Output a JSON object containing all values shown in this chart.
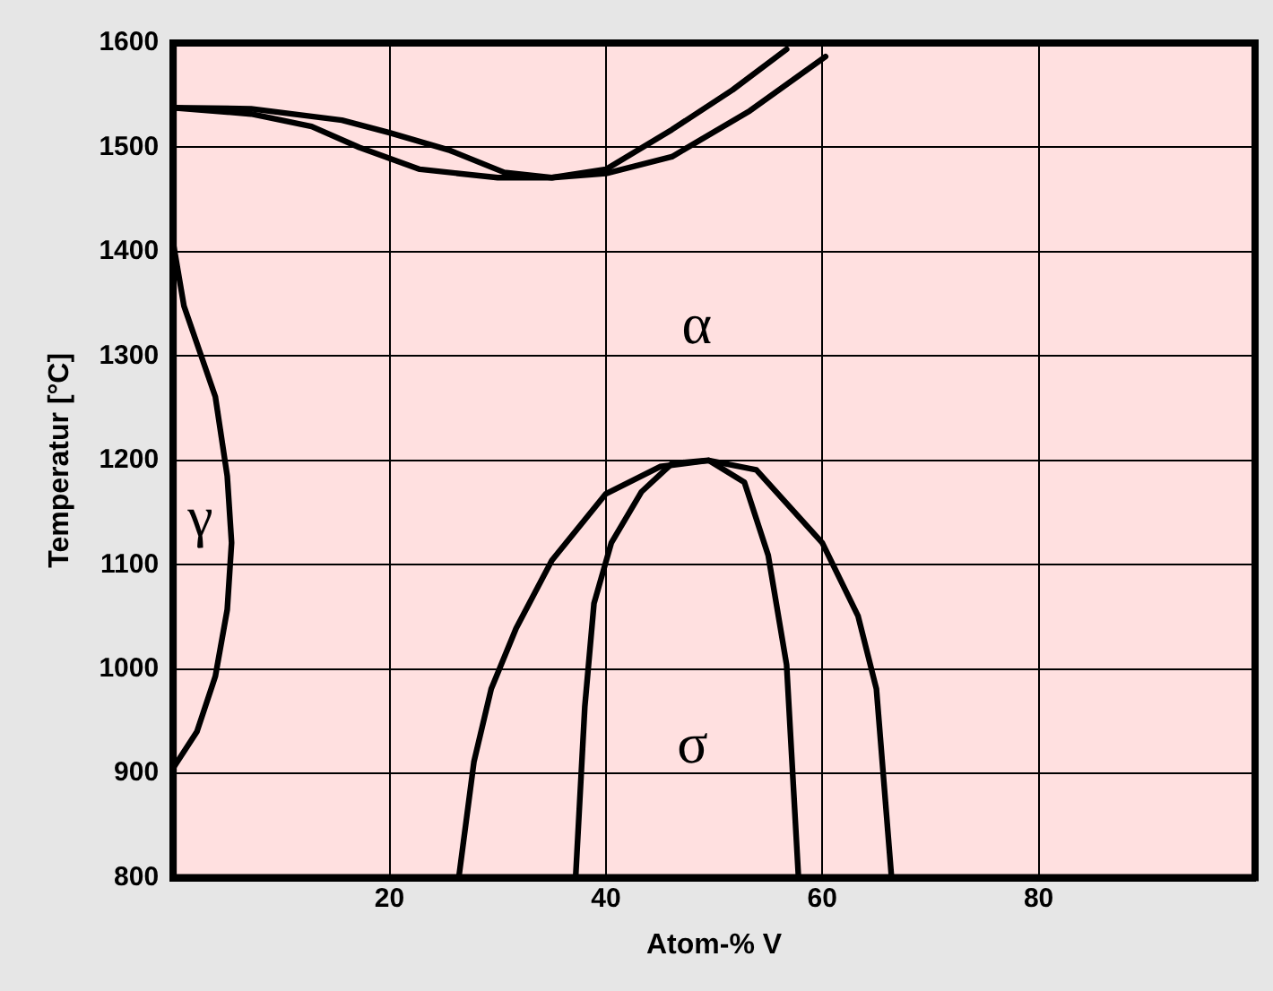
{
  "chart_data": {
    "type": "line",
    "xlabel": "Atom-% V",
    "ylabel": "Temperatur [°C]",
    "xlim": [
      0,
      100
    ],
    "xticks": [
      20,
      40,
      60,
      80
    ],
    "ylim": [
      800,
      1600
    ],
    "yticks": [
      800,
      900,
      1000,
      1100,
      1200,
      1300,
      1400,
      1500,
      1600
    ],
    "grid": true,
    "legend": false,
    "marker": "none",
    "line_style": "solid",
    "series": [
      {
        "color": "#000000",
        "x": [
          0,
          7.2,
          15.6,
          20,
          25.6,
          30.6,
          35,
          40,
          46.1,
          51.7,
          56.7
        ],
        "values": [
          1538,
          1537,
          1526,
          1514,
          1497,
          1476,
          1471,
          1479,
          1517,
          1555,
          1594
        ]
      },
      {
        "color": "#000000",
        "x": [
          0,
          7.2,
          12.8,
          17.2,
          22.8,
          30,
          35,
          40,
          46.1,
          53.3,
          60.3
        ],
        "values": [
          1538,
          1532,
          1520,
          1500,
          1479,
          1471,
          1471,
          1475,
          1491,
          1535,
          1587
        ]
      },
      {
        "color": "#000000",
        "x": [
          0,
          1,
          3.9,
          5,
          5.4,
          5,
          3.9,
          2.2,
          0
        ],
        "values": [
          1409,
          1348,
          1261,
          1185,
          1121,
          1057,
          993,
          940,
          905
        ]
      },
      {
        "color": "#000000",
        "x": [
          26.4,
          27.8,
          29.4,
          31.7,
          35,
          40,
          45,
          49.5,
          53.9,
          60,
          63.3,
          65,
          66.4
        ],
        "values": [
          800,
          911,
          981,
          1039,
          1104,
          1168,
          1194,
          1200,
          1191,
          1121,
          1051,
          981,
          800
        ]
      },
      {
        "color": "#000000",
        "x": [
          37.2,
          38.05,
          38.9,
          40.5,
          43.3,
          46.1,
          49.5,
          52.8,
          55,
          56.7,
          57.8
        ],
        "values": [
          800,
          964,
          1063,
          1121,
          1170,
          1197,
          1200,
          1179,
          1109,
          1004,
          800
        ]
      }
    ],
    "annotations": [
      "α",
      "γ",
      "σ"
    ]
  }
}
